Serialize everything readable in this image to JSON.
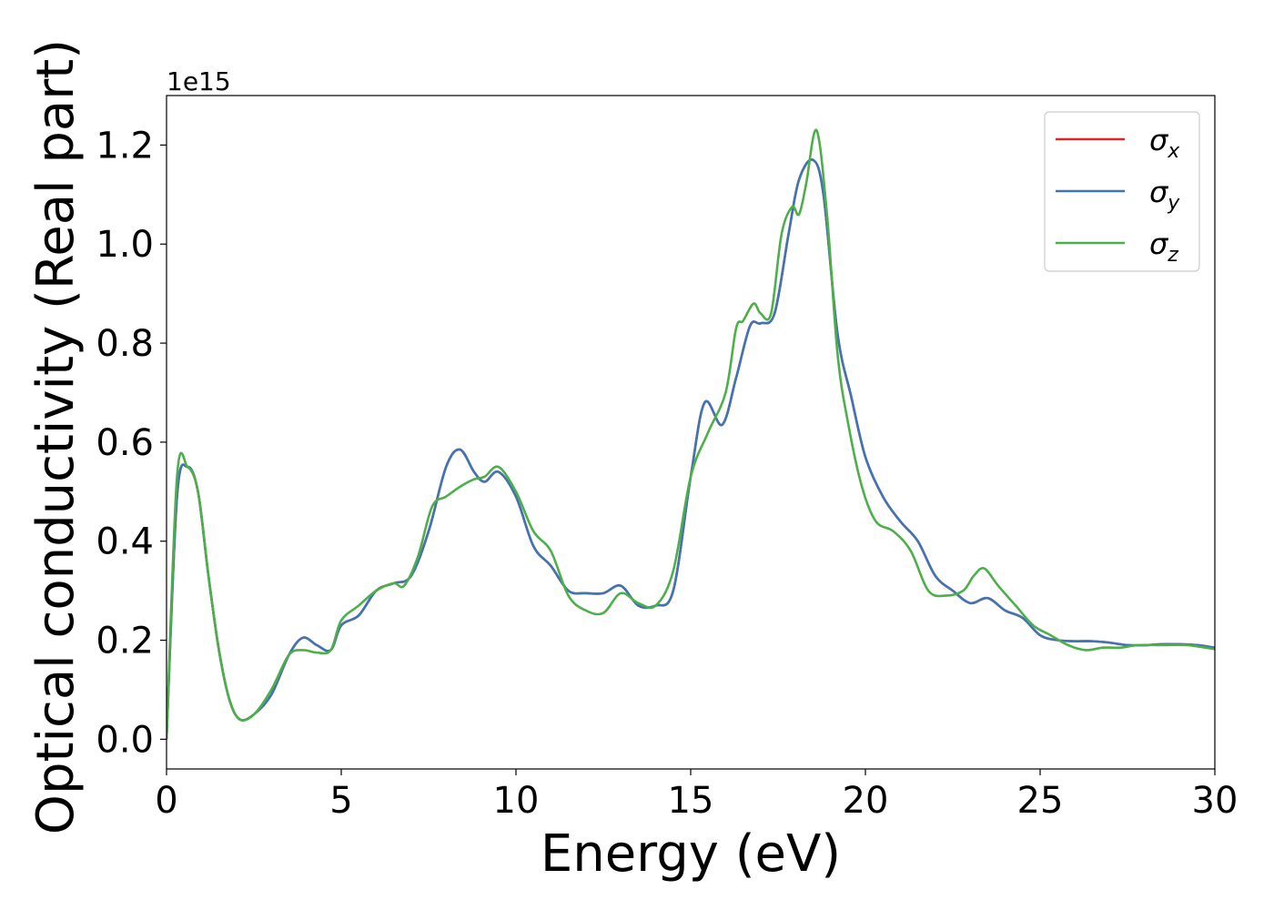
{
  "chart_data": {
    "type": "line",
    "xlabel": "Energy (eV)",
    "ylabel": "Optical conductivity (Real part)",
    "y_offset_text": "1e15",
    "xlim": [
      0,
      30
    ],
    "ylim": [
      -0.06,
      1.3
    ],
    "x_ticks": [
      0,
      5,
      10,
      15,
      20,
      25,
      30
    ],
    "x_tick_labels": [
      "0",
      "5",
      "10",
      "15",
      "20",
      "25",
      "30"
    ],
    "y_ticks": [
      0.0,
      0.2,
      0.4,
      0.6,
      0.8,
      1.0,
      1.2
    ],
    "y_tick_labels": [
      "0.0",
      "0.2",
      "0.4",
      "0.6",
      "0.8",
      "1.0",
      "1.2"
    ],
    "grid": false,
    "legend_position": "top-right",
    "series": [
      {
        "name": "σ",
        "subscript": "x",
        "color": "#d62728",
        "x": [
          0,
          0.3,
          0.6,
          0.9,
          1.2,
          1.5,
          1.8,
          2.1,
          2.5,
          3.0,
          3.5,
          3.9,
          4.3,
          4.7,
          5.0,
          5.5,
          6.0,
          6.5,
          7.0,
          7.5,
          8.0,
          8.4,
          8.8,
          9.1,
          9.5,
          10.0,
          10.5,
          11.0,
          11.5,
          12.0,
          12.5,
          13.0,
          13.5,
          14.0,
          14.5,
          15.0,
          15.4,
          15.9,
          16.3,
          16.7,
          17.0,
          17.4,
          17.8,
          18.1,
          18.5,
          18.8,
          19.2,
          19.6,
          20.0,
          20.5,
          21.0,
          21.5,
          22.0,
          22.5,
          23.0,
          23.5,
          24.0,
          24.5,
          25.0,
          25.5,
          26.0,
          26.5,
          27.0,
          27.5,
          28.0,
          28.5,
          29.0,
          29.5,
          30.0
        ],
        "y": [
          0.0,
          0.49,
          0.55,
          0.5,
          0.33,
          0.18,
          0.08,
          0.04,
          0.05,
          0.09,
          0.17,
          0.205,
          0.19,
          0.18,
          0.23,
          0.25,
          0.3,
          0.315,
          0.33,
          0.42,
          0.55,
          0.585,
          0.54,
          0.52,
          0.54,
          0.49,
          0.39,
          0.35,
          0.3,
          0.295,
          0.295,
          0.31,
          0.27,
          0.27,
          0.3,
          0.53,
          0.68,
          0.635,
          0.73,
          0.835,
          0.84,
          0.86,
          1.02,
          1.13,
          1.17,
          1.1,
          0.82,
          0.69,
          0.57,
          0.49,
          0.44,
          0.4,
          0.33,
          0.3,
          0.275,
          0.285,
          0.26,
          0.245,
          0.21,
          0.2,
          0.198,
          0.198,
          0.195,
          0.19,
          0.19,
          0.192,
          0.192,
          0.19,
          0.185
        ]
      },
      {
        "name": "σ",
        "subscript": "y",
        "color": "#3f75b4",
        "x": [
          0,
          0.3,
          0.6,
          0.9,
          1.2,
          1.5,
          1.8,
          2.1,
          2.5,
          3.0,
          3.5,
          3.9,
          4.3,
          4.7,
          5.0,
          5.5,
          6.0,
          6.5,
          7.0,
          7.5,
          8.0,
          8.4,
          8.8,
          9.1,
          9.5,
          10.0,
          10.5,
          11.0,
          11.5,
          12.0,
          12.5,
          13.0,
          13.5,
          14.0,
          14.5,
          15.0,
          15.4,
          15.9,
          16.3,
          16.7,
          17.0,
          17.4,
          17.8,
          18.1,
          18.5,
          18.8,
          19.2,
          19.6,
          20.0,
          20.5,
          21.0,
          21.5,
          22.0,
          22.5,
          23.0,
          23.5,
          24.0,
          24.5,
          25.0,
          25.5,
          26.0,
          26.5,
          27.0,
          27.5,
          28.0,
          28.5,
          29.0,
          29.5,
          30.0
        ],
        "y": [
          0.0,
          0.49,
          0.55,
          0.5,
          0.33,
          0.18,
          0.08,
          0.04,
          0.05,
          0.09,
          0.17,
          0.205,
          0.19,
          0.18,
          0.23,
          0.25,
          0.3,
          0.315,
          0.33,
          0.42,
          0.55,
          0.585,
          0.54,
          0.52,
          0.54,
          0.49,
          0.39,
          0.35,
          0.3,
          0.295,
          0.295,
          0.31,
          0.27,
          0.27,
          0.3,
          0.53,
          0.68,
          0.635,
          0.73,
          0.835,
          0.84,
          0.86,
          1.02,
          1.13,
          1.17,
          1.1,
          0.82,
          0.69,
          0.57,
          0.49,
          0.44,
          0.4,
          0.33,
          0.3,
          0.275,
          0.285,
          0.26,
          0.245,
          0.21,
          0.2,
          0.198,
          0.198,
          0.195,
          0.19,
          0.19,
          0.192,
          0.192,
          0.19,
          0.185
        ]
      },
      {
        "name": "σ",
        "subscript": "z",
        "color": "#4daf4a",
        "x": [
          0,
          0.3,
          0.6,
          0.9,
          1.2,
          1.5,
          1.8,
          2.1,
          2.5,
          3.0,
          3.5,
          3.9,
          4.3,
          4.7,
          5.0,
          5.5,
          6.0,
          6.5,
          6.8,
          7.2,
          7.6,
          8.0,
          8.4,
          8.8,
          9.1,
          9.5,
          10.0,
          10.5,
          11.0,
          11.5,
          12.0,
          12.5,
          13.0,
          13.5,
          14.0,
          14.5,
          15.0,
          15.5,
          16.0,
          16.3,
          16.5,
          16.8,
          17.0,
          17.3,
          17.6,
          17.9,
          18.1,
          18.3,
          18.6,
          18.9,
          19.2,
          19.5,
          19.9,
          20.3,
          20.8,
          21.3,
          21.8,
          22.3,
          22.8,
          23.1,
          23.4,
          23.8,
          24.3,
          24.8,
          25.3,
          25.8,
          26.3,
          26.8,
          27.3,
          27.8,
          28.5,
          29.2,
          30.0
        ],
        "y": [
          0.0,
          0.53,
          0.55,
          0.5,
          0.33,
          0.18,
          0.08,
          0.04,
          0.05,
          0.1,
          0.17,
          0.18,
          0.175,
          0.18,
          0.24,
          0.27,
          0.3,
          0.315,
          0.31,
          0.37,
          0.47,
          0.49,
          0.51,
          0.525,
          0.53,
          0.55,
          0.5,
          0.42,
          0.38,
          0.29,
          0.26,
          0.255,
          0.295,
          0.275,
          0.27,
          0.34,
          0.53,
          0.62,
          0.7,
          0.83,
          0.845,
          0.88,
          0.86,
          0.86,
          1.02,
          1.075,
          1.06,
          1.12,
          1.23,
          1.06,
          0.78,
          0.64,
          0.51,
          0.44,
          0.42,
          0.38,
          0.3,
          0.29,
          0.3,
          0.33,
          0.345,
          0.31,
          0.27,
          0.23,
          0.21,
          0.19,
          0.18,
          0.185,
          0.185,
          0.19,
          0.19,
          0.19,
          0.182
        ]
      }
    ]
  }
}
